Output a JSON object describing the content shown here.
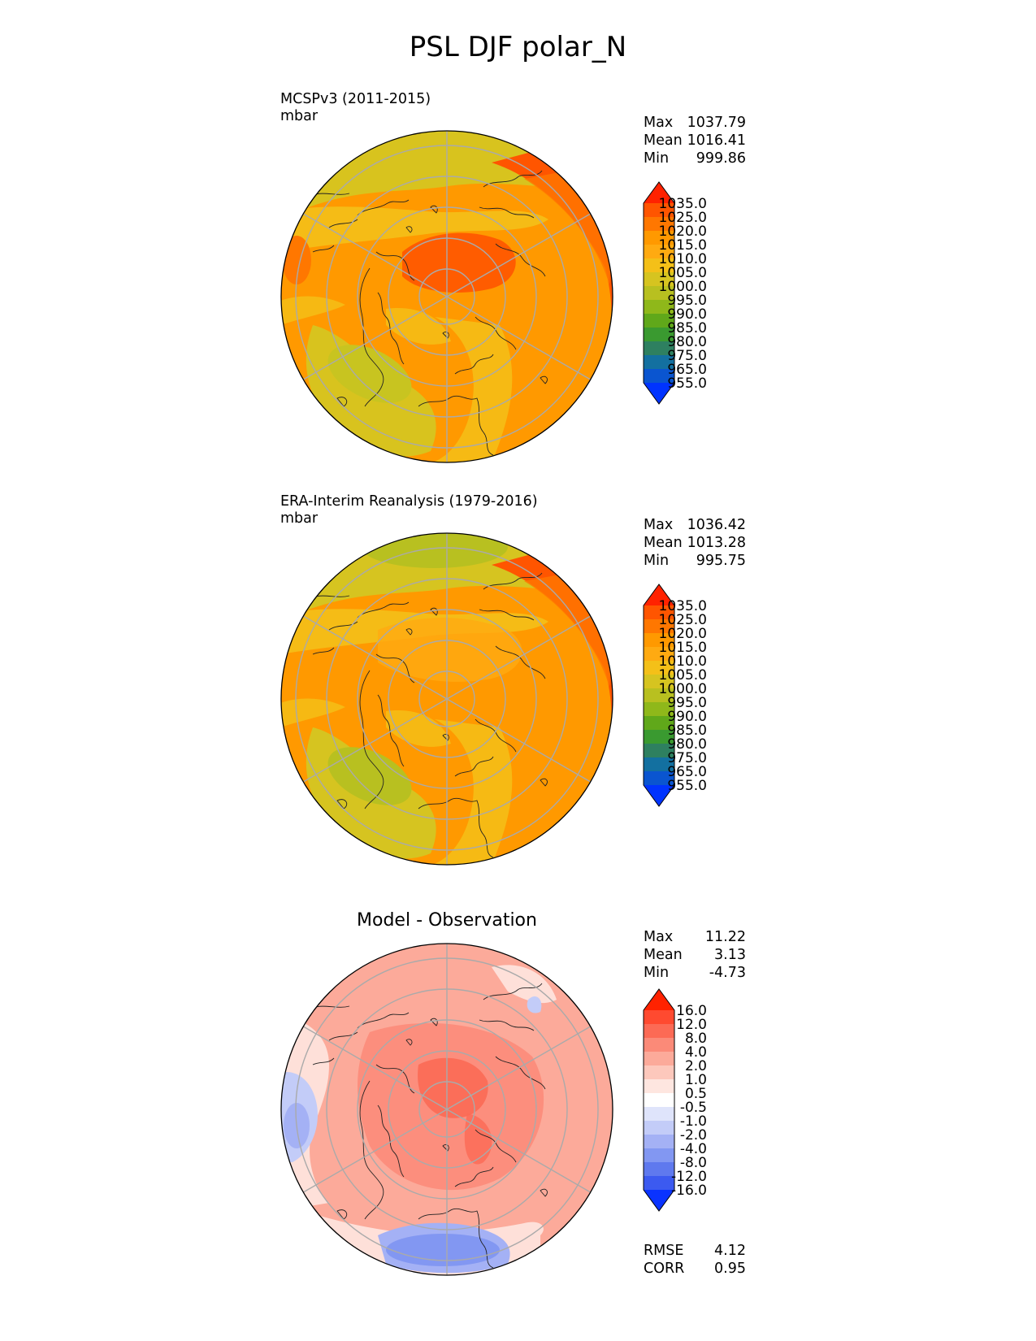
{
  "title": "PSL DJF polar_N",
  "panels": [
    {
      "id": "model",
      "title_lines": [
        "MCSPv3 (2011-2015)",
        "mbar"
      ],
      "stats": {
        "max_label": "Max",
        "max": "1037.79",
        "mean_label": "Mean",
        "mean": "1016.41",
        "min_label": "Min",
        "min": "999.86"
      },
      "colorbar": {
        "labels": [
          "1035.0",
          "1025.0",
          "1020.0",
          "1015.0",
          "1010.0",
          "1005.0",
          "1000.0",
          "995.0",
          "990.0",
          "985.0",
          "980.0",
          "975.0",
          "965.0",
          "955.0"
        ],
        "colors": [
          "#ff2200",
          "#ff5500",
          "#ff7700",
          "#ff9900",
          "#ffaa11",
          "#f4c018",
          "#d6c420",
          "#b8c020",
          "#8fb81a",
          "#60a81a",
          "#3a9a30",
          "#2e8060",
          "#1370a0",
          "#0a55d0",
          "#0033ff"
        ]
      }
    },
    {
      "id": "obs",
      "title_lines": [
        "ERA-Interim Reanalysis (1979-2016)",
        "mbar"
      ],
      "stats": {
        "max_label": "Max",
        "max": "1036.42",
        "mean_label": "Mean",
        "mean": "1013.28",
        "min_label": "Min",
        "min": "995.75"
      },
      "colorbar": {
        "labels": [
          "1035.0",
          "1025.0",
          "1020.0",
          "1015.0",
          "1010.0",
          "1005.0",
          "1000.0",
          "995.0",
          "990.0",
          "985.0",
          "980.0",
          "975.0",
          "965.0",
          "955.0"
        ],
        "colors": [
          "#ff2200",
          "#ff5500",
          "#ff7700",
          "#ff9900",
          "#ffaa11",
          "#f4c018",
          "#d6c420",
          "#b8c020",
          "#8fb81a",
          "#60a81a",
          "#3a9a30",
          "#2e8060",
          "#1370a0",
          "#0a55d0",
          "#0033ff"
        ]
      }
    },
    {
      "id": "diff",
      "title_lines": [
        "Model - Observation"
      ],
      "stats": {
        "max_label": "Max",
        "max": "11.22",
        "mean_label": "Mean",
        "mean": "3.13",
        "min_label": "Min",
        "min": "-4.73"
      },
      "colorbar": {
        "labels": [
          "16.0",
          "12.0",
          "8.0",
          "4.0",
          "2.0",
          "1.0",
          "0.5",
          "-0.5",
          "-1.0",
          "-2.0",
          "-4.0",
          "-8.0",
          "-12.0",
          "-16.0"
        ],
        "colors": [
          "#ff2200",
          "#ff4a30",
          "#fc6a55",
          "#fb8a78",
          "#fcaa9a",
          "#fdc8bc",
          "#fee6e0",
          "#ffffff",
          "#dfe4fb",
          "#c3ccf8",
          "#a4b1f5",
          "#8297f2",
          "#5f79ee",
          "#3c5af0",
          "#0a33ff"
        ]
      },
      "footer": {
        "rmse_label": "RMSE",
        "rmse": "4.12",
        "corr_label": "CORR",
        "corr": "0.95"
      }
    }
  ]
}
